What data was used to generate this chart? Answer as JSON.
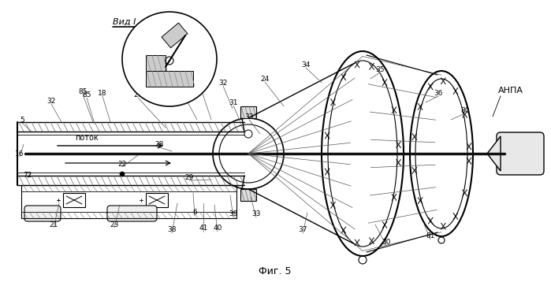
{
  "title": "Фиг. 5",
  "bg": "#ffffff",
  "lc": "#000000",
  "view_label": "Вид I",
  "anpa_label": "АНПА",
  "potok_label": "поток"
}
